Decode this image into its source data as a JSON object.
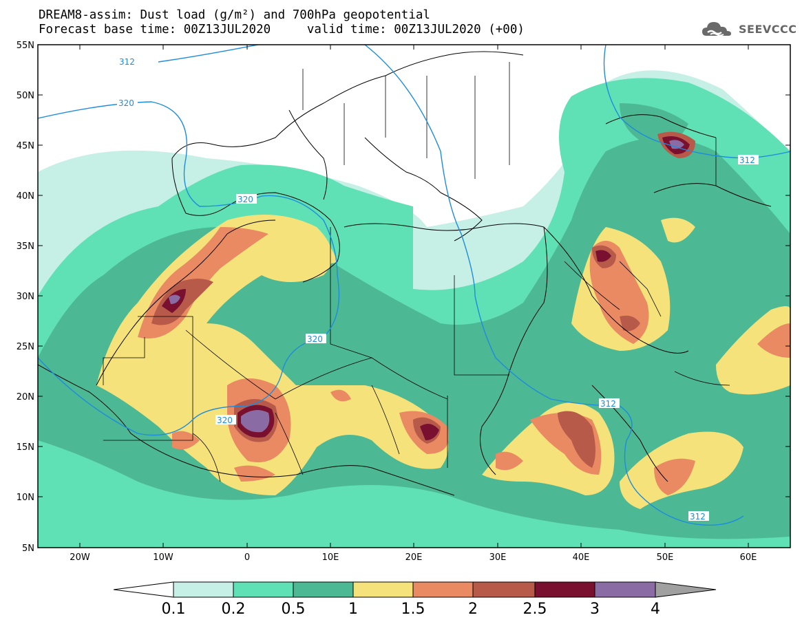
{
  "title_line1": "DREAM8-assim: Dust load (g/m²) and 700hPa geopotential",
  "title_line2": "Forecast base time: 00Z13JUL2020     valid time: 00Z13JUL2020 (+00)",
  "logo_text": "SEEVCCC",
  "lat_labels": [
    "55N",
    "50N",
    "45N",
    "40N",
    "35N",
    "30N",
    "25N",
    "20N",
    "15N",
    "10N",
    "5N"
  ],
  "lon_labels": [
    "20W",
    "10W",
    "0",
    "10E",
    "20E",
    "30E",
    "40E",
    "50E",
    "60E"
  ],
  "colorbar": {
    "ticks": [
      "0.1",
      "0.2",
      "0.5",
      "1",
      "1.5",
      "2",
      "2.5",
      "3",
      "4"
    ],
    "colors": [
      "#c6efe6",
      "#5fe0b5",
      "#4db894",
      "#f5e27a",
      "#e98a62",
      "#b85a4a",
      "#7a1030",
      "#8b6ba3",
      "#a0a0a0"
    ]
  },
  "contour_labels": [
    "312",
    "320",
    "320",
    "320",
    "320",
    "312",
    "312",
    "312"
  ],
  "contour_color": "#1e8cdc"
}
